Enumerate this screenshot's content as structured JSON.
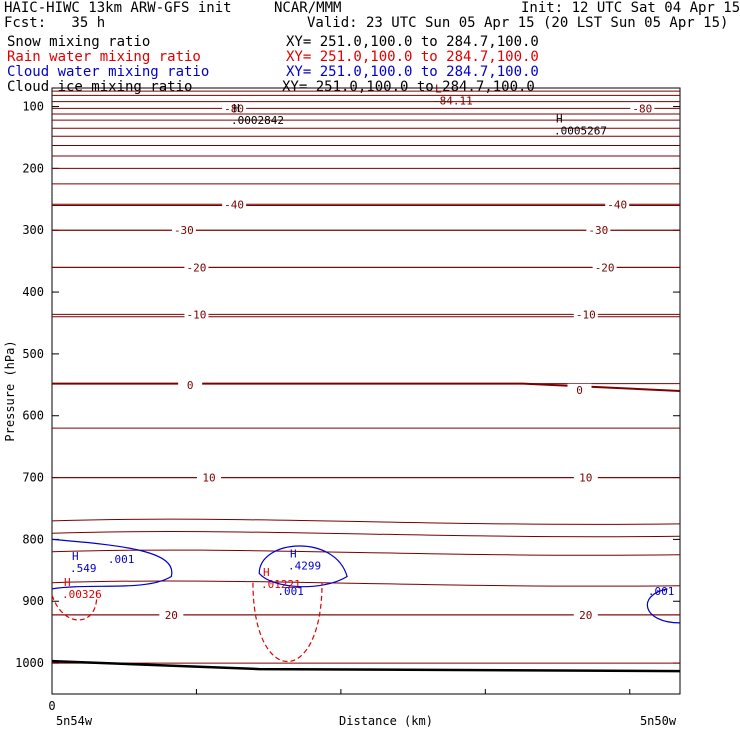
{
  "header": {
    "model": "HAIC-HIWC 13km ARW-GFS init",
    "org": "NCAR/MMM",
    "init": "Init: 12 UTC Sat 04 Apr 15",
    "fcst": "Fcst:   35 h",
    "valid": "Valid: 23 UTC Sun 05 Apr 15 (20 LST Sun 05 Apr 15)"
  },
  "fields": [
    {
      "name": "Snow mixing ratio",
      "xy": "XY= 251.0,100.0 to 284.7,100.0",
      "color": "#000000"
    },
    {
      "name": "Rain water mixing ratio",
      "xy": "XY= 251.0,100.0 to 284.7,100.0",
      "color": "#e00000"
    },
    {
      "name": "Cloud water mixing ratio",
      "xy": "XY= 251.0,100.0 to 284.7,100.0",
      "color": "#0000cc"
    },
    {
      "name": "Cloud ice mixing ratio",
      "xy": "XY= 251.0,100.0 to 284.7,100.0",
      "color": "#000000"
    }
  ],
  "colors": {
    "temperature": "#7a0000",
    "rain": "#e00000",
    "cloud_water": "#0000cc",
    "terrain": "#000000"
  },
  "chart_data": {
    "type": "line",
    "xlabel": "Distance (km)",
    "ylabel": "Pressure (hPa)",
    "ylim": [
      1050,
      70
    ],
    "y_ticks": [
      100,
      200,
      300,
      400,
      500,
      600,
      700,
      800,
      900,
      1000
    ],
    "x_tick_zero": "0",
    "x_endpoint_labels": [
      "5n54w",
      "5n50w"
    ],
    "grid": false,
    "temperature_contours": [
      {
        "label": "-80",
        "y": [
          103,
          103
        ],
        "labels_at": [
          0.29,
          0.94
        ]
      },
      {
        "label": "-40",
        "y": [
          258,
          258
        ],
        "labels_at": [
          0.29,
          0.9
        ]
      },
      {
        "label": "-30",
        "y": [
          300,
          300
        ],
        "labels_at": [
          0.21,
          0.87
        ]
      },
      {
        "label": "-20",
        "y": [
          360,
          360
        ],
        "labels_at": [
          0.23,
          0.88
        ]
      },
      {
        "label": "-10",
        "y": [
          436,
          436
        ],
        "labels_at": [
          0.23,
          0.85
        ]
      },
      {
        "label": "0",
        "y": [
          548,
          560
        ],
        "labels_at": [
          0.22,
          0.84
        ]
      },
      {
        "label": "10",
        "y": [
          700,
          700
        ],
        "labels_at": [
          0.25,
          0.85
        ]
      },
      {
        "label": "20",
        "y": [
          922,
          922
        ],
        "labels_at": [
          0.19,
          0.85
        ]
      }
    ],
    "annotations": [
      {
        "text": "L",
        "value": "-84.11",
        "p": 84
      },
      {
        "text": "H",
        "value": ".0002842",
        "p": 115
      },
      {
        "text": "H",
        "value": ".0005267",
        "p": 132
      },
      {
        "text": "H",
        "value": ".549",
        "p": 840
      },
      {
        "text": "H",
        "value": ".00326",
        "p": 882
      },
      {
        "text": "H",
        "value": ".4299",
        "p": 836
      },
      {
        "text": "H",
        "value": ".01221",
        "p": 866
      }
    ],
    "cloud_water_labels": [
      ".001",
      ".001",
      ".001"
    ],
    "pressure_lines": [
      75,
      82,
      92,
      112,
      122,
      135,
      148,
      163,
      180,
      200,
      225,
      260,
      300,
      360,
      440,
      548,
      620,
      700,
      770,
      790,
      820,
      870,
      922,
      1000
    ]
  }
}
